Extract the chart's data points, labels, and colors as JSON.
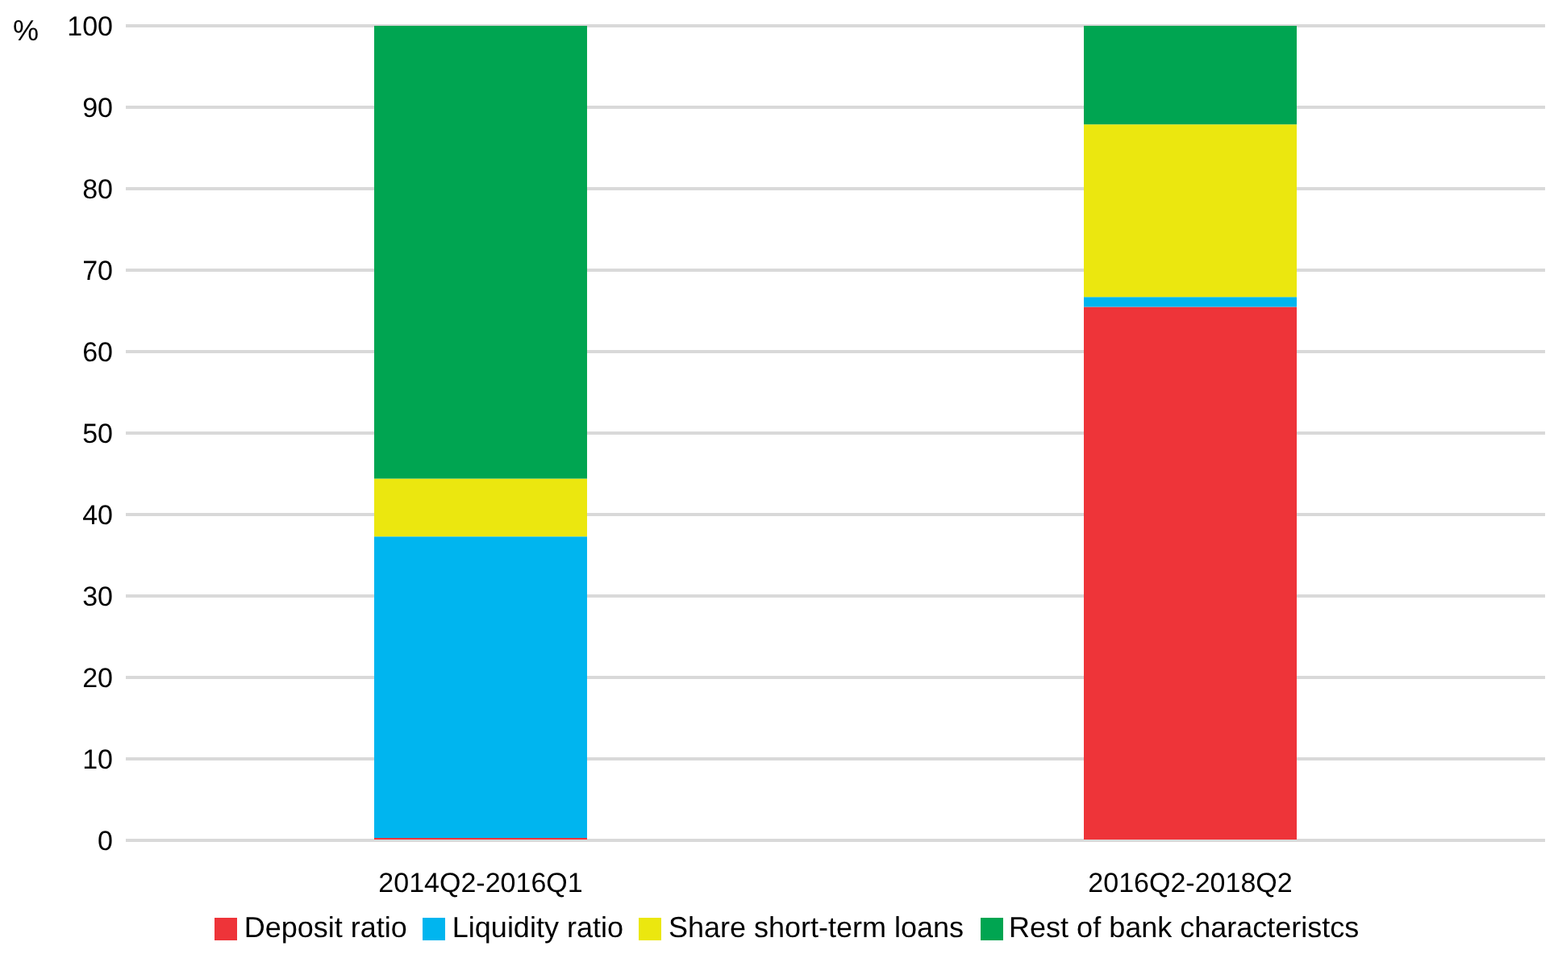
{
  "chart_data": {
    "type": "bar",
    "ylabel": "%",
    "categories": [
      "2014Q2-2016Q1",
      "2016Q2-2018Q2"
    ],
    "stacked": true,
    "series": [
      {
        "name": "Deposit ratio",
        "color": "#ee3439",
        "values": [
          0.3,
          65.5
        ]
      },
      {
        "name": "Liquidity ratio",
        "color": "#00b5ef",
        "values": [
          37.0,
          1.2
        ]
      },
      {
        "name": "Share short-term loans",
        "color": "#ebe70f",
        "values": [
          7.1,
          21.2
        ]
      },
      {
        "name": "Rest of bank characteristcs",
        "color": "#00a551",
        "values": [
          55.6,
          12.1
        ]
      }
    ],
    "ylim": [
      0,
      100
    ],
    "yticks": [
      0,
      10,
      20,
      30,
      40,
      50,
      60,
      70,
      80,
      90,
      100
    ],
    "grid": "y",
    "legend": "bottom"
  }
}
